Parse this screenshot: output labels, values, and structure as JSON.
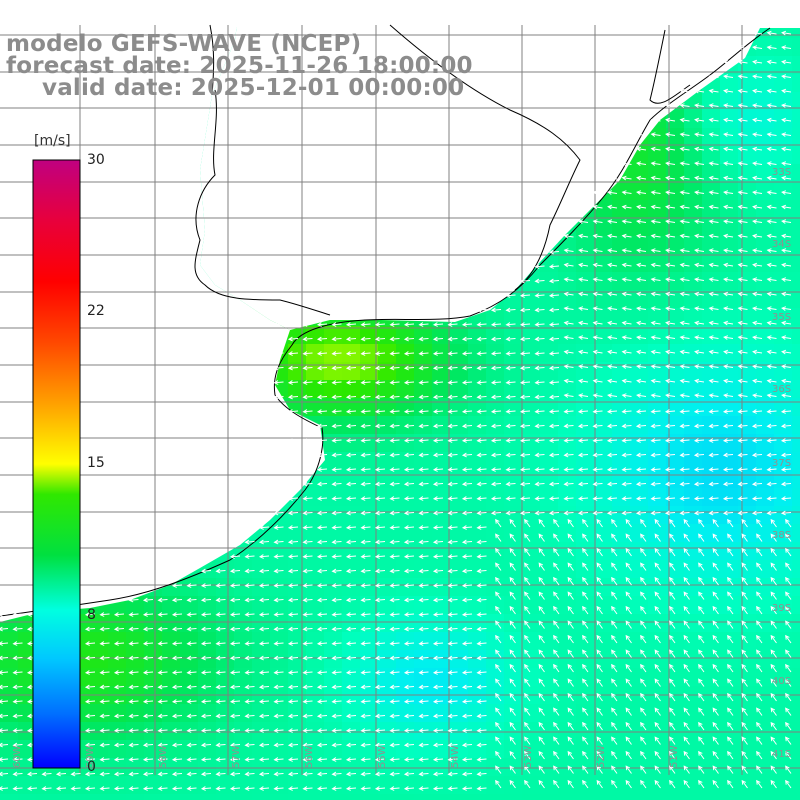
{
  "title": {
    "line1": "modelo GEFS-WAVE (NCEP)",
    "line2": "forecast date: 2025-11-26 18:00:00",
    "line3": "valid date: 2025-12-01 00:00:00"
  },
  "colorbar": {
    "unit": "[m/s]",
    "min": 0,
    "max": 30,
    "ticks": [
      "30",
      "22",
      "15",
      "8",
      "0"
    ],
    "tick_values": [
      30,
      22,
      15,
      8,
      0
    ],
    "colors": [
      "#0000ff",
      "#0080ff",
      "#00e0ff",
      "#00ffc0",
      "#00e000",
      "#40f000",
      "#c0ff00",
      "#ffff00",
      "#ffa000",
      "#ff5000",
      "#ff0000",
      "#e00060",
      "#c0007a"
    ]
  },
  "lat_labels": [
    "33S",
    "34S",
    "35S",
    "36S",
    "37S",
    "38S",
    "39S",
    "40S",
    "41S"
  ],
  "lon_labels": [
    "60W",
    "59W",
    "58W",
    "57W",
    "56W",
    "55W",
    "54W",
    "53W",
    "52W",
    "51W"
  ],
  "colors": {
    "land": "#ffffff",
    "grid": "#808080",
    "coast": "#000000",
    "arrow": "#ffffff",
    "title": "#8c8c8c"
  }
}
